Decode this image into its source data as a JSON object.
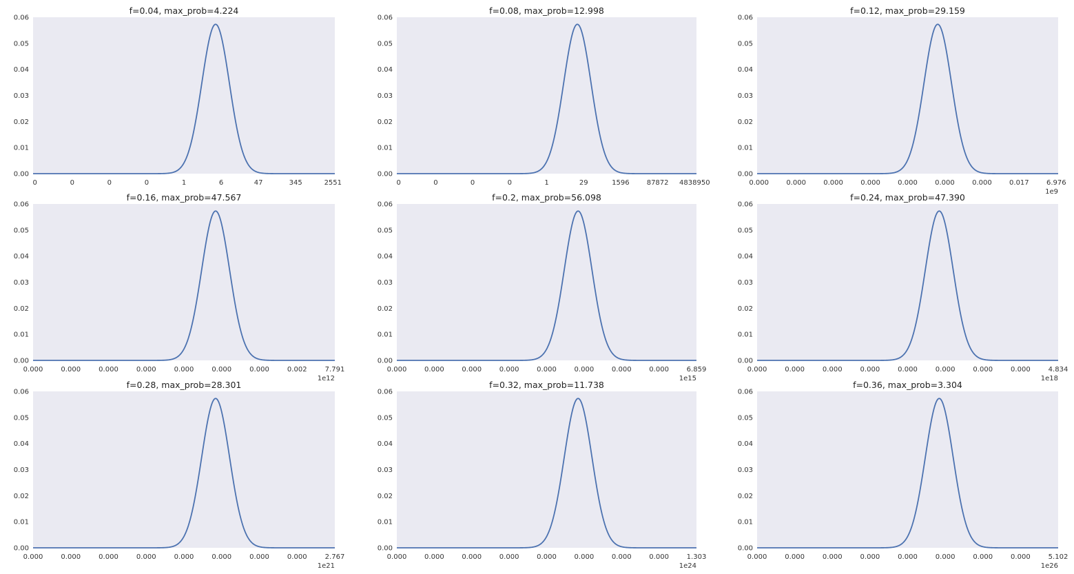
{
  "charts": [
    {
      "chart_data": {
        "type": "line",
        "title": "f=0.04, max_prob=4.224",
        "xticklabels": [
          "0",
          "0",
          "0",
          "0",
          "1",
          "6",
          "47",
          "345",
          "2551"
        ],
        "xoffset": "",
        "yticklabels": [
          "0.00",
          "0.01",
          "0.02",
          "0.03",
          "0.04",
          "0.05",
          "0.06"
        ],
        "ylim": [
          0,
          0.06
        ],
        "x_span": [
          -0.05,
          8.05
        ],
        "curve": {
          "type": "gaussian",
          "peak_x": 4.85,
          "peak_y": 0.0573,
          "sigma": 0.37
        },
        "color": "#4c72b0",
        "background": "#eaeaf2",
        "grid": false
      }
    },
    {
      "chart_data": {
        "type": "line",
        "title": "f=0.08, max_prob=12.998",
        "xticklabels": [
          "0",
          "0",
          "0",
          "0",
          "1",
          "29",
          "1596",
          "87872",
          "4838950"
        ],
        "xoffset": "",
        "yticklabels": [
          "0.00",
          "0.01",
          "0.02",
          "0.03",
          "0.04",
          "0.05",
          "0.06"
        ],
        "ylim": [
          0,
          0.06
        ],
        "x_span": [
          -0.05,
          8.05
        ],
        "curve": {
          "type": "gaussian",
          "peak_x": 4.83,
          "peak_y": 0.0573,
          "sigma": 0.37
        },
        "color": "#4c72b0",
        "background": "#eaeaf2",
        "grid": false
      }
    },
    {
      "chart_data": {
        "type": "line",
        "title": "f=0.12, max_prob=29.159",
        "xticklabels": [
          "0.000",
          "0.000",
          "0.000",
          "0.000",
          "0.000",
          "0.000",
          "0.000",
          "0.017",
          "6.976"
        ],
        "xoffset": "1e9",
        "yticklabels": [
          "0.00",
          "0.01",
          "0.02",
          "0.03",
          "0.04",
          "0.05",
          "0.06"
        ],
        "ylim": [
          0,
          0.06
        ],
        "x_span": [
          -0.05,
          8.05
        ],
        "curve": {
          "type": "gaussian",
          "peak_x": 4.81,
          "peak_y": 0.0573,
          "sigma": 0.37
        },
        "color": "#4c72b0",
        "background": "#eaeaf2",
        "grid": false
      }
    },
    {
      "chart_data": {
        "type": "line",
        "title": "f=0.16, max_prob=47.567",
        "xticklabels": [
          "0.000",
          "0.000",
          "0.000",
          "0.000",
          "0.000",
          "0.000",
          "0.000",
          "0.002",
          "7.791"
        ],
        "xoffset": "1e12",
        "yticklabels": [
          "0.00",
          "0.01",
          "0.02",
          "0.03",
          "0.04",
          "0.05",
          "0.06"
        ],
        "ylim": [
          0,
          0.06
        ],
        "x_span": [
          0,
          8
        ],
        "curve": {
          "type": "gaussian",
          "peak_x": 4.84,
          "peak_y": 0.0573,
          "sigma": 0.37
        },
        "color": "#4c72b0",
        "background": "#eaeaf2",
        "grid": false
      }
    },
    {
      "chart_data": {
        "type": "line",
        "title": "f=0.2, max_prob=56.098",
        "xticklabels": [
          "0.000",
          "0.000",
          "0.000",
          "0.000",
          "0.000",
          "0.000",
          "0.000",
          "0.000",
          "6.859"
        ],
        "xoffset": "1e15",
        "yticklabels": [
          "0.00",
          "0.01",
          "0.02",
          "0.03",
          "0.04",
          "0.05",
          "0.06"
        ],
        "ylim": [
          0,
          0.06
        ],
        "x_span": [
          0,
          8
        ],
        "curve": {
          "type": "gaussian",
          "peak_x": 4.84,
          "peak_y": 0.0573,
          "sigma": 0.37
        },
        "color": "#4c72b0",
        "background": "#eaeaf2",
        "grid": false
      }
    },
    {
      "chart_data": {
        "type": "line",
        "title": "f=0.24, max_prob=47.390",
        "xticklabels": [
          "0.000",
          "0.000",
          "0.000",
          "0.000",
          "0.000",
          "0.000",
          "0.000",
          "0.000",
          "4.834"
        ],
        "xoffset": "1e18",
        "yticklabels": [
          "0.00",
          "0.01",
          "0.02",
          "0.03",
          "0.04",
          "0.05",
          "0.06"
        ],
        "ylim": [
          0,
          0.06
        ],
        "x_span": [
          0,
          8
        ],
        "curve": {
          "type": "gaussian",
          "peak_x": 4.84,
          "peak_y": 0.0573,
          "sigma": 0.37
        },
        "color": "#4c72b0",
        "background": "#eaeaf2",
        "grid": false
      }
    },
    {
      "chart_data": {
        "type": "line",
        "title": "f=0.28, max_prob=28.301",
        "xticklabels": [
          "0.000",
          "0.000",
          "0.000",
          "0.000",
          "0.000",
          "0.000",
          "0.000",
          "0.000",
          "2.767"
        ],
        "xoffset": "1e21",
        "yticklabels": [
          "0.00",
          "0.01",
          "0.02",
          "0.03",
          "0.04",
          "0.05",
          "0.06"
        ],
        "ylim": [
          0,
          0.06
        ],
        "x_span": [
          0,
          8
        ],
        "curve": {
          "type": "gaussian",
          "peak_x": 4.84,
          "peak_y": 0.0573,
          "sigma": 0.37
        },
        "color": "#4c72b0",
        "background": "#eaeaf2",
        "grid": false
      }
    },
    {
      "chart_data": {
        "type": "line",
        "title": "f=0.32, max_prob=11.738",
        "xticklabels": [
          "0.000",
          "0.000",
          "0.000",
          "0.000",
          "0.000",
          "0.000",
          "0.000",
          "0.000",
          "1.303"
        ],
        "xoffset": "1e24",
        "yticklabels": [
          "0.00",
          "0.01",
          "0.02",
          "0.03",
          "0.04",
          "0.05",
          "0.06"
        ],
        "ylim": [
          0,
          0.06
        ],
        "x_span": [
          0,
          8
        ],
        "curve": {
          "type": "gaussian",
          "peak_x": 4.84,
          "peak_y": 0.0573,
          "sigma": 0.37
        },
        "color": "#4c72b0",
        "background": "#eaeaf2",
        "grid": false
      }
    },
    {
      "chart_data": {
        "type": "line",
        "title": "f=0.36, max_prob=3.304",
        "xticklabels": [
          "0.000",
          "0.000",
          "0.000",
          "0.000",
          "0.000",
          "0.000",
          "0.000",
          "0.000",
          "5.102"
        ],
        "xoffset": "1e26",
        "yticklabels": [
          "0.00",
          "0.01",
          "0.02",
          "0.03",
          "0.04",
          "0.05",
          "0.06"
        ],
        "ylim": [
          0,
          0.06
        ],
        "x_span": [
          0,
          8
        ],
        "curve": {
          "type": "gaussian",
          "peak_x": 4.84,
          "peak_y": 0.0573,
          "sigma": 0.37
        },
        "color": "#4c72b0",
        "background": "#eaeaf2",
        "grid": false
      }
    }
  ]
}
